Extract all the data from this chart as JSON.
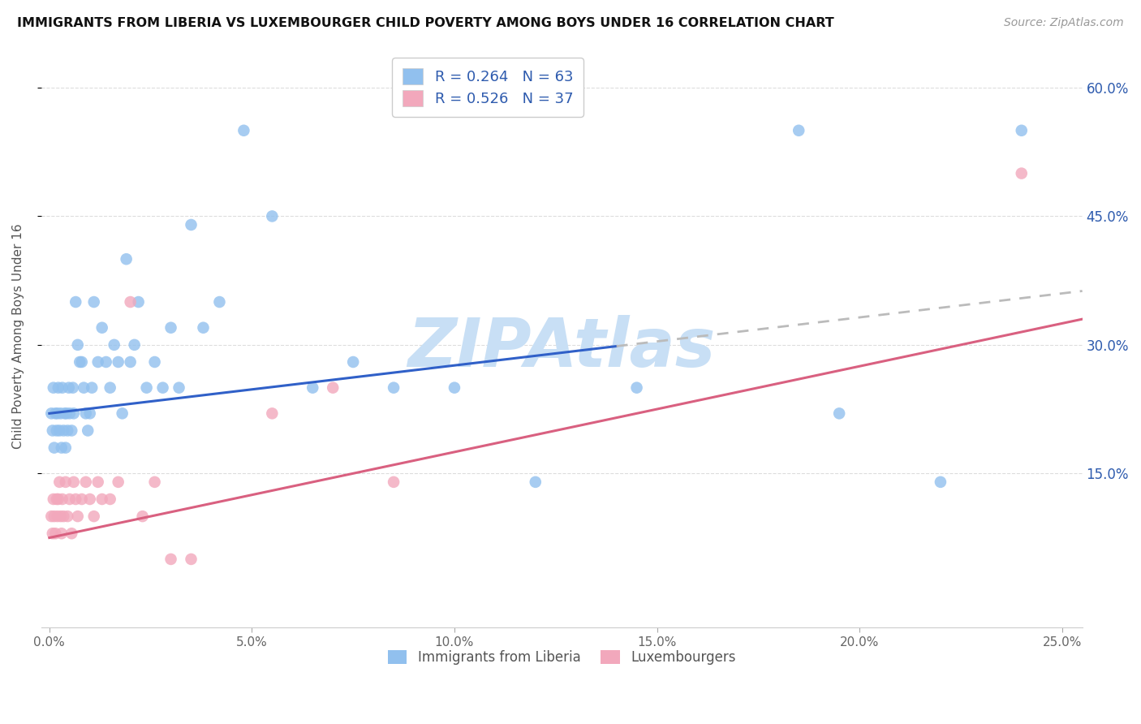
{
  "title": "IMMIGRANTS FROM LIBERIA VS LUXEMBOURGER CHILD POVERTY AMONG BOYS UNDER 16 CORRELATION CHART",
  "source": "Source: ZipAtlas.com",
  "ylabel": "Child Poverty Among Boys Under 16",
  "x_tick_labels": [
    "0.0%",
    "5.0%",
    "10.0%",
    "15.0%",
    "20.0%",
    "25.0%"
  ],
  "x_tick_values": [
    0.0,
    5.0,
    10.0,
    15.0,
    20.0,
    25.0
  ],
  "y_tick_labels": [
    "15.0%",
    "30.0%",
    "45.0%",
    "60.0%"
  ],
  "y_tick_values": [
    15.0,
    30.0,
    45.0,
    60.0
  ],
  "xlim": [
    -0.2,
    25.5
  ],
  "ylim": [
    -3.0,
    65.0
  ],
  "legend1_R": "0.264",
  "legend1_N": "63",
  "legend2_R": "0.526",
  "legend2_N": "37",
  "legend_label1": "Immigrants from Liberia",
  "legend_label2": "Luxembourgers",
  "color_blue": "#91C0EE",
  "color_pink": "#F2A8BC",
  "color_blue_text": "#2E5BAE",
  "line_blue": "#3060C8",
  "line_pink": "#D96080",
  "line_dash_color": "#BBBBBB",
  "watermark": "ZIPAtlas",
  "watermark_color": "#C8DFF5",
  "blue_intercept": 22.0,
  "blue_slope": 0.56,
  "pink_intercept": 7.5,
  "pink_slope": 1.0,
  "dash_start_x": 14.0,
  "blue_scatter_x": [
    0.05,
    0.08,
    0.1,
    0.12,
    0.15,
    0.18,
    0.2,
    0.22,
    0.25,
    0.28,
    0.3,
    0.32,
    0.35,
    0.38,
    0.4,
    0.42,
    0.45,
    0.48,
    0.5,
    0.55,
    0.58,
    0.6,
    0.65,
    0.7,
    0.75,
    0.8,
    0.85,
    0.9,
    0.95,
    1.0,
    1.05,
    1.1,
    1.2,
    1.3,
    1.4,
    1.5,
    1.6,
    1.7,
    1.8,
    1.9,
    2.0,
    2.1,
    2.2,
    2.4,
    2.6,
    2.8,
    3.0,
    3.2,
    3.5,
    3.8,
    4.2,
    4.8,
    5.5,
    6.5,
    7.5,
    8.5,
    10.0,
    12.0,
    14.5,
    18.5,
    19.5,
    22.0,
    24.0
  ],
  "blue_scatter_y": [
    22.0,
    20.0,
    25.0,
    18.0,
    22.0,
    20.0,
    22.0,
    25.0,
    20.0,
    22.0,
    18.0,
    25.0,
    20.0,
    22.0,
    18.0,
    22.0,
    20.0,
    25.0,
    22.0,
    20.0,
    25.0,
    22.0,
    35.0,
    30.0,
    28.0,
    28.0,
    25.0,
    22.0,
    20.0,
    22.0,
    25.0,
    35.0,
    28.0,
    32.0,
    28.0,
    25.0,
    30.0,
    28.0,
    22.0,
    40.0,
    28.0,
    30.0,
    35.0,
    25.0,
    28.0,
    25.0,
    32.0,
    25.0,
    44.0,
    32.0,
    35.0,
    55.0,
    45.0,
    25.0,
    28.0,
    25.0,
    25.0,
    14.0,
    25.0,
    55.0,
    22.0,
    14.0,
    55.0
  ],
  "pink_scatter_x": [
    0.05,
    0.08,
    0.1,
    0.12,
    0.15,
    0.18,
    0.2,
    0.22,
    0.25,
    0.28,
    0.3,
    0.32,
    0.35,
    0.4,
    0.45,
    0.5,
    0.55,
    0.6,
    0.65,
    0.7,
    0.8,
    0.9,
    1.0,
    1.1,
    1.2,
    1.3,
    1.5,
    1.7,
    2.0,
    2.3,
    2.6,
    3.0,
    3.5,
    5.5,
    7.0,
    8.5,
    24.0
  ],
  "pink_scatter_y": [
    10.0,
    8.0,
    12.0,
    10.0,
    8.0,
    12.0,
    10.0,
    12.0,
    14.0,
    10.0,
    8.0,
    12.0,
    10.0,
    14.0,
    10.0,
    12.0,
    8.0,
    14.0,
    12.0,
    10.0,
    12.0,
    14.0,
    12.0,
    10.0,
    14.0,
    12.0,
    12.0,
    14.0,
    35.0,
    10.0,
    14.0,
    5.0,
    5.0,
    22.0,
    25.0,
    14.0,
    50.0
  ],
  "background_color": "#FFFFFF",
  "grid_color": "#DDDDDD"
}
